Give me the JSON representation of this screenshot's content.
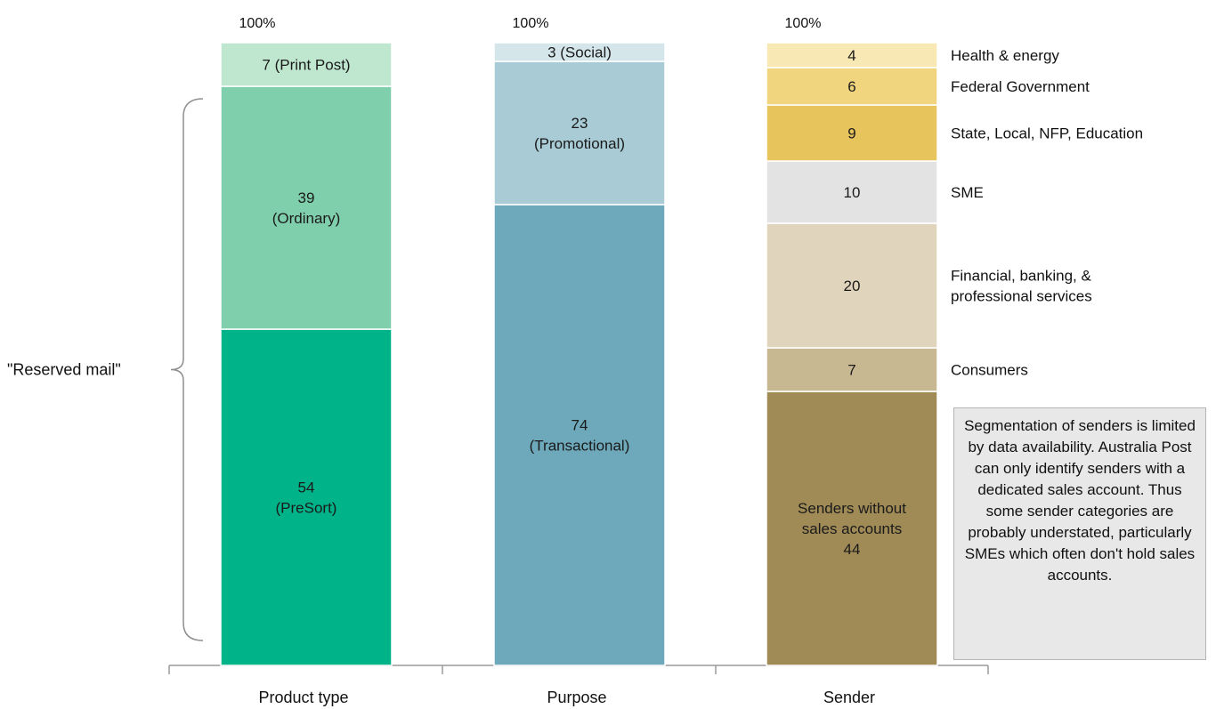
{
  "chart_data": {
    "type": "bar",
    "stacked": true,
    "categories": [
      "Product type",
      "Purpose",
      "Sender"
    ],
    "totals": [
      "100%",
      "100%",
      "100%"
    ],
    "columns": [
      {
        "category": "Product type",
        "total_label": "100%",
        "segments": [
          {
            "value": 54,
            "label": "54\n(PreSort)",
            "color": "#00b388"
          },
          {
            "value": 39,
            "label": "39\n(Ordinary)",
            "color": "#80cfac"
          },
          {
            "value": 7,
            "label": "7 (Print Post)",
            "color": "#bfe6cf"
          }
        ]
      },
      {
        "category": "Purpose",
        "total_label": "100%",
        "segments": [
          {
            "value": 74,
            "label": "74\n(Transactional)",
            "color": "#6ea9bb"
          },
          {
            "value": 23,
            "label": "23\n(Promotional)",
            "color": "#a9cbd5"
          },
          {
            "value": 3,
            "label": "3 (Social)",
            "color": "#d5e6eb"
          }
        ]
      },
      {
        "category": "Sender",
        "total_label": "100%",
        "segments": [
          {
            "value": 44,
            "label": "Senders without\nsales accounts\n44",
            "color": "#a08b57",
            "legend": ""
          },
          {
            "value": 7,
            "label": "7",
            "color": "#c8b891",
            "legend": "Consumers"
          },
          {
            "value": 20,
            "label": "20",
            "color": "#e1d4bd",
            "legend": "Financial, banking, &\nprofessional services"
          },
          {
            "value": 10,
            "label": "10",
            "color": "#e3e3e3",
            "legend": "SME"
          },
          {
            "value": 9,
            "label": "9",
            "color": "#e8c45c",
            "legend": "State, Local, NFP, Education"
          },
          {
            "value": 6,
            "label": "6",
            "color": "#f0d57e",
            "legend": "Federal Government"
          },
          {
            "value": 4,
            "label": "4",
            "color": "#f8e9b4",
            "legend": "Health & energy"
          }
        ]
      }
    ],
    "bracket_label": "\"Reserved mail\"",
    "bracket_covers": {
      "column": "Product type",
      "segments": [
        "PreSort",
        "Ordinary"
      ]
    },
    "ylim": [
      0,
      100
    ]
  },
  "note": "Segmentation of senders is limited by data availability. Australia Post can only identify senders with a dedicated sales account. Thus some sender categories are probably understated, particularly SMEs which often don't hold sales accounts."
}
